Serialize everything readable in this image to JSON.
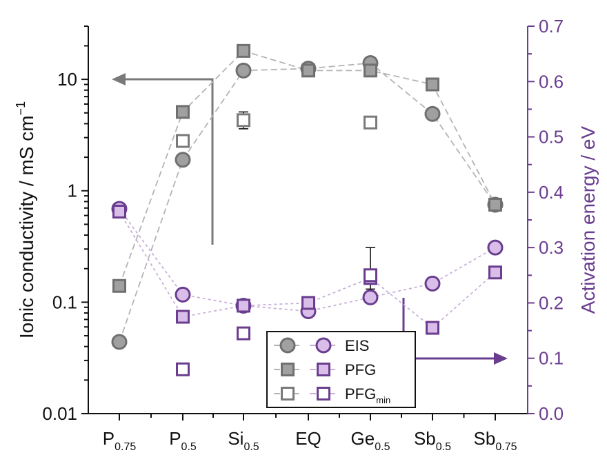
{
  "chart_data": {
    "type": "scatter",
    "categories": [
      "P",
      "P",
      "Si",
      "EQ",
      "Ge",
      "Sb",
      "Sb"
    ],
    "category_subscripts": [
      "0.75",
      "0.5",
      "0.5",
      "",
      "0.5",
      "0.5",
      "0.75"
    ],
    "left_axis": {
      "label_main": "Ionic conductivity / mS cm",
      "label_superscript": "−1",
      "scale": "log",
      "range": [
        0.01,
        30
      ],
      "ticks": [
        0.01,
        0.1,
        1,
        10
      ],
      "tick_labels": [
        "0.01",
        "0.1",
        "1",
        "10"
      ]
    },
    "right_axis": {
      "label": "Activation energy / eV",
      "range": [
        0.0,
        0.7
      ],
      "ticks": [
        0.0,
        0.1,
        0.2,
        0.3,
        0.4,
        0.5,
        0.6,
        0.7
      ],
      "tick_labels": [
        "0.0",
        "0.1",
        "0.2",
        "0.3",
        "0.4",
        "0.5",
        "0.6",
        "0.7"
      ],
      "color": "#6a3d8f"
    },
    "series": [
      {
        "group": "conductivity",
        "marker": "circle",
        "fill": "#a0a0a0",
        "stroke": "#6f6f6f",
        "values": [
          0.044,
          1.9,
          12,
          12.5,
          14,
          4.9,
          0.75
        ]
      },
      {
        "group": "conductivity",
        "marker": "square",
        "fill": "#a0a0a0",
        "stroke": "#6f6f6f",
        "values": [
          0.14,
          5.1,
          18,
          12,
          12,
          9,
          0.75
        ]
      },
      {
        "group": "conductivity",
        "marker": "square-open",
        "fill": "#ffffff",
        "stroke": "#7a7a7a",
        "values": [
          null,
          2.8,
          4.3,
          null,
          4.1,
          null,
          null
        ],
        "errors": [
          null,
          null,
          [
            3.6,
            5.1
          ],
          null,
          null,
          null,
          null
        ]
      },
      {
        "group": "activation",
        "marker": "circle",
        "fill": "#d8bee8",
        "stroke": "#6a3d8f",
        "values": [
          0.37,
          0.215,
          0.195,
          0.185,
          0.21,
          0.235,
          0.3
        ]
      },
      {
        "group": "activation",
        "marker": "square",
        "fill": "#d8bee8",
        "stroke": "#6a3d8f",
        "values": [
          0.365,
          0.175,
          0.195,
          0.2,
          0.245,
          0.155,
          0.255
        ]
      },
      {
        "group": "activation",
        "marker": "square-open",
        "fill": "#ffffff",
        "stroke": "#6a3d8f",
        "values": [
          null,
          0.08,
          0.145,
          null,
          0.25,
          null,
          null
        ],
        "errors": [
          null,
          null,
          null,
          null,
          [
            0.225,
            0.3
          ],
          null,
          null
        ]
      }
    ],
    "legend": {
      "placement": "bottom-center",
      "items": [
        {
          "label": "EIS",
          "subscript": ""
        },
        {
          "label": "PFG",
          "subscript": ""
        },
        {
          "label": "PFG",
          "subscript": "min"
        }
      ]
    },
    "arrows": [
      {
        "axis": "left",
        "direction": "left"
      },
      {
        "axis": "right",
        "direction": "right"
      }
    ],
    "colors": {
      "gray": "#7a7a7a",
      "purple": "#6a3d8f"
    }
  }
}
